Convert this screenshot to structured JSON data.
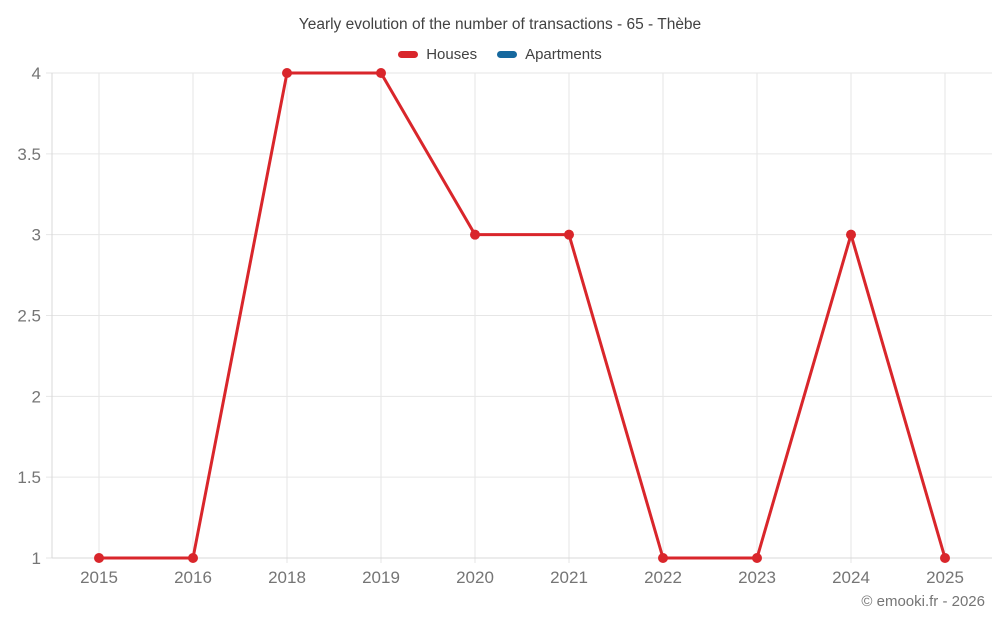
{
  "chart_data": {
    "type": "line",
    "title": "Yearly evolution of the number of transactions - 65 - Thèbe",
    "categories": [
      "2015",
      "2016",
      "2018",
      "2019",
      "2020",
      "2021",
      "2022",
      "2023",
      "2024",
      "2025"
    ],
    "series": [
      {
        "name": "Houses",
        "color": "#d9262b",
        "values": [
          1,
          1,
          4,
          4,
          3,
          3,
          1,
          1,
          3,
          1
        ]
      },
      {
        "name": "Apartments",
        "color": "#16689e",
        "values": []
      }
    ],
    "ylim": [
      1,
      4
    ],
    "yticks": [
      1,
      1.5,
      2,
      2.5,
      3,
      3.5,
      4
    ],
    "grid": true,
    "legend_position": "top",
    "colors": {
      "grid_line": "#e6e6e6",
      "axis_line": "#d8d8d8",
      "tick_label": "#757575",
      "title_text": "#424242"
    }
  },
  "footer": {
    "credit": "© emooki.fr - 2026"
  }
}
